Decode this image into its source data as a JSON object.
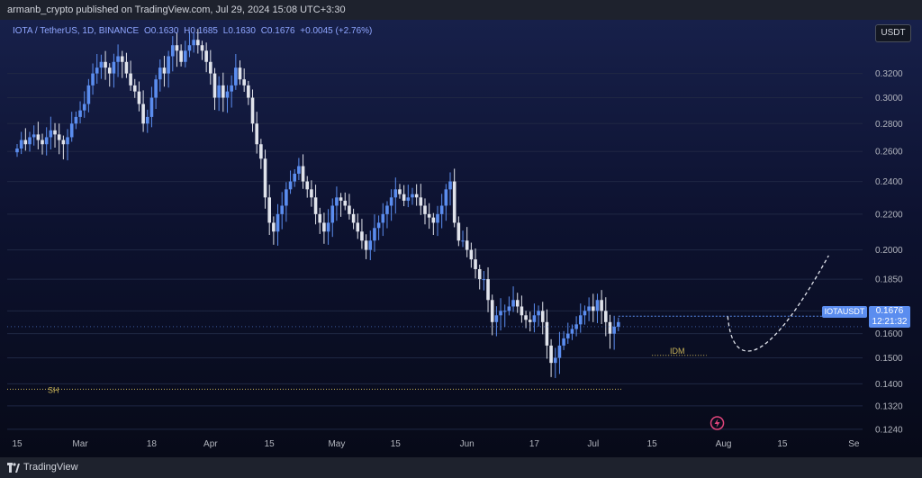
{
  "header": {
    "publisher_line": "armanb_crypto published on TradingView.com, Jul 29, 2024 15:08 UTC+3:30"
  },
  "legend": {
    "symbol": "IOTA / TetherUS, 1D, BINANCE",
    "open": "O0.1630",
    "high": "H0.1685",
    "low": "L0.1630",
    "close": "C0.1676",
    "change": "+0.0045 (+2.76%)"
  },
  "currency_button": "USDT",
  "price_tag": {
    "symbol": "IOTAUSDT",
    "price": "0.1676",
    "countdown": "12:21:32"
  },
  "footer": {
    "brand": "TradingView"
  },
  "colors": {
    "up": "#5b8def",
    "down": "#e0e3eb",
    "accent": "#5b8def",
    "annotation": "#c9b458"
  },
  "chart_data": {
    "type": "candlestick",
    "symbol": "IOTAUSDT",
    "timeframe": "1D",
    "y_scale": "log",
    "y_ticks": [
      0.32,
      0.3,
      0.28,
      0.26,
      0.24,
      0.22,
      0.2,
      0.185,
      0.17,
      0.16,
      0.15,
      0.14,
      0.132,
      0.124
    ],
    "y_tick_labels": [
      "0.3200",
      "0.3000",
      "0.2800",
      "0.2600",
      "0.2400",
      "0.2200",
      "0.2000",
      "0.1850",
      "0.1700",
      "0.1600",
      "0.1500",
      "0.1400",
      "0.1320",
      "0.1240"
    ],
    "x_ticks": [
      {
        "label": "15",
        "day": 0
      },
      {
        "label": "Mar",
        "day": 15
      },
      {
        "label": "18",
        "day": 32
      },
      {
        "label": "Apr",
        "day": 46
      },
      {
        "label": "15",
        "day": 60
      },
      {
        "label": "May",
        "day": 76
      },
      {
        "label": "15",
        "day": 90
      },
      {
        "label": "Jun",
        "day": 107
      },
      {
        "label": "17",
        "day": 123
      },
      {
        "label": "Jul",
        "day": 137
      },
      {
        "label": "15",
        "day": 151
      },
      {
        "label": "Aug",
        "day": 168
      },
      {
        "label": "15",
        "day": 182
      },
      {
        "label": "Se",
        "day": 199
      }
    ],
    "closes": [
      0.262,
      0.268,
      0.265,
      0.27,
      0.272,
      0.268,
      0.265,
      0.27,
      0.275,
      0.272,
      0.268,
      0.265,
      0.27,
      0.28,
      0.285,
      0.29,
      0.295,
      0.31,
      0.32,
      0.325,
      0.33,
      0.325,
      0.32,
      0.33,
      0.335,
      0.33,
      0.32,
      0.31,
      0.305,
      0.295,
      0.28,
      0.285,
      0.3,
      0.315,
      0.325,
      0.32,
      0.335,
      0.345,
      0.34,
      0.33,
      0.34,
      0.345,
      0.35,
      0.345,
      0.34,
      0.33,
      0.32,
      0.3,
      0.31,
      0.3,
      0.305,
      0.31,
      0.325,
      0.315,
      0.31,
      0.3,
      0.28,
      0.265,
      0.255,
      0.23,
      0.215,
      0.21,
      0.22,
      0.225,
      0.235,
      0.24,
      0.245,
      0.25,
      0.24,
      0.235,
      0.23,
      0.22,
      0.215,
      0.21,
      0.215,
      0.225,
      0.23,
      0.228,
      0.225,
      0.22,
      0.215,
      0.21,
      0.205,
      0.2,
      0.205,
      0.212,
      0.215,
      0.22,
      0.225,
      0.23,
      0.235,
      0.232,
      0.228,
      0.23,
      0.232,
      0.23,
      0.225,
      0.22,
      0.218,
      0.215,
      0.22,
      0.225,
      0.235,
      0.24,
      0.215,
      0.205,
      0.205,
      0.2,
      0.195,
      0.19,
      0.185,
      0.185,
      0.175,
      0.165,
      0.168,
      0.17,
      0.17,
      0.172,
      0.175,
      0.172,
      0.168,
      0.166,
      0.165,
      0.168,
      0.17,
      0.165,
      0.155,
      0.148,
      0.15,
      0.155,
      0.158,
      0.16,
      0.162,
      0.164,
      0.168,
      0.17,
      0.172,
      0.17,
      0.175,
      0.17,
      0.165,
      0.16,
      0.163,
      0.165
    ],
    "prev_close_line": 0.163,
    "last_price": 0.1676,
    "annotations": [
      {
        "label": "SH",
        "level": 0.138,
        "style": "dotted"
      },
      {
        "label": "IDM",
        "level": 0.151,
        "style": "dotted"
      }
    ],
    "projection": {
      "style": "dashed",
      "from_day": 169,
      "to_day": 193,
      "low": 0.153,
      "target": 0.197
    }
  }
}
